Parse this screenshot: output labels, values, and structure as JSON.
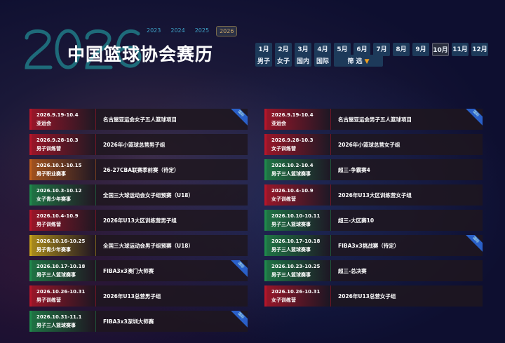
{
  "header": {
    "big_year": "2026",
    "title": "中国篮球协会赛历",
    "years": [
      "2023",
      "2024",
      "2025",
      "2026"
    ],
    "active_year": "2026"
  },
  "months": [
    "1月",
    "2月",
    "3月",
    "4月",
    "5月",
    "6月",
    "7月",
    "8月",
    "9月",
    "10月",
    "11月",
    "12月"
  ],
  "active_month": "10月",
  "filters": {
    "male": "男子",
    "female": "女子",
    "domestic": "国内",
    "international": "国际",
    "filter_label": "筛 选",
    "filter_icon": "triangle-down-icon"
  },
  "ribbon_label": "国际",
  "colors": {
    "red": "#b5162a",
    "orange": "#c0601c",
    "green": "#1f8a4c",
    "yellow": "#c9a51a"
  },
  "left": [
    {
      "date": "2026.9.19-10.4",
      "type": "亚运会",
      "name": "名古屋亚运会女子五人篮球项目",
      "color": "red",
      "ribbon": true
    },
    {
      "date": "2026.9.28-10.3",
      "type": "男子训练营",
      "name": "2026年小篮球总营男子组",
      "color": "red",
      "ribbon": false
    },
    {
      "date": "2026.10.1-10.15",
      "type": "男子职业赛事",
      "name": "26-27CBA联赛季前赛（待定）",
      "color": "orange",
      "ribbon": false
    },
    {
      "date": "2026.10.3-10.12",
      "type": "女子青少年赛事",
      "name": "全国三大球运动会女子组预赛（U18）",
      "color": "green",
      "ribbon": false
    },
    {
      "date": "2026.10.4-10.9",
      "type": "男子训练营",
      "name": "2026年U13大区训练营男子组",
      "color": "red",
      "ribbon": false
    },
    {
      "date": "2026.10.16-10.25",
      "type": "男子青少年赛事",
      "name": "全国三大球运动会男子组预赛（U18）",
      "color": "yellow",
      "ribbon": false
    },
    {
      "date": "2026.10.17-10.18",
      "type": "男子三人篮球赛事",
      "name": "FIBA3x3澳门大师赛",
      "color": "green",
      "ribbon": true
    },
    {
      "date": "2026.10.26-10.31",
      "type": "男子训练营",
      "name": "2026年U13总营男子组",
      "color": "red",
      "ribbon": false
    },
    {
      "date": "2026.10.31-11.1",
      "type": "男子三人篮球赛事",
      "name": "FIBA3x3深圳大师赛",
      "color": "green",
      "ribbon": true
    }
  ],
  "right": [
    {
      "date": "2026.9.19-10.4",
      "type": "亚运会",
      "name": "名古屋亚运会男子五人篮球项目",
      "color": "red",
      "ribbon": true
    },
    {
      "date": "2026.9.28-10.3",
      "type": "女子训练营",
      "name": "2026年小篮球总营女子组",
      "color": "red",
      "ribbon": false
    },
    {
      "date": "2026.10.2-10.4",
      "type": "男子三人篮球赛事",
      "name": "超三-争霸赛4",
      "color": "green",
      "ribbon": false
    },
    {
      "date": "2026.10.4-10.9",
      "type": "女子训练营",
      "name": "2026年U13大区训练营女子组",
      "color": "red",
      "ribbon": false
    },
    {
      "date": "2026.10.10-10.11",
      "type": "男子三人篮球赛事",
      "name": "超三-大区赛10",
      "color": "green",
      "ribbon": false
    },
    {
      "date": "2026.10.17-10.18",
      "type": "男子三人篮球赛事",
      "name": "FIBA3x3挑战赛（待定）",
      "color": "green",
      "ribbon": true
    },
    {
      "date": "2026.10.23-10.25",
      "type": "男子三人篮球赛事",
      "name": "超三-总决赛",
      "color": "green",
      "ribbon": false
    },
    {
      "date": "2026.10.26-10.31",
      "type": "女子训练营",
      "name": "2026年U13总营女子组",
      "color": "red",
      "ribbon": false
    }
  ]
}
